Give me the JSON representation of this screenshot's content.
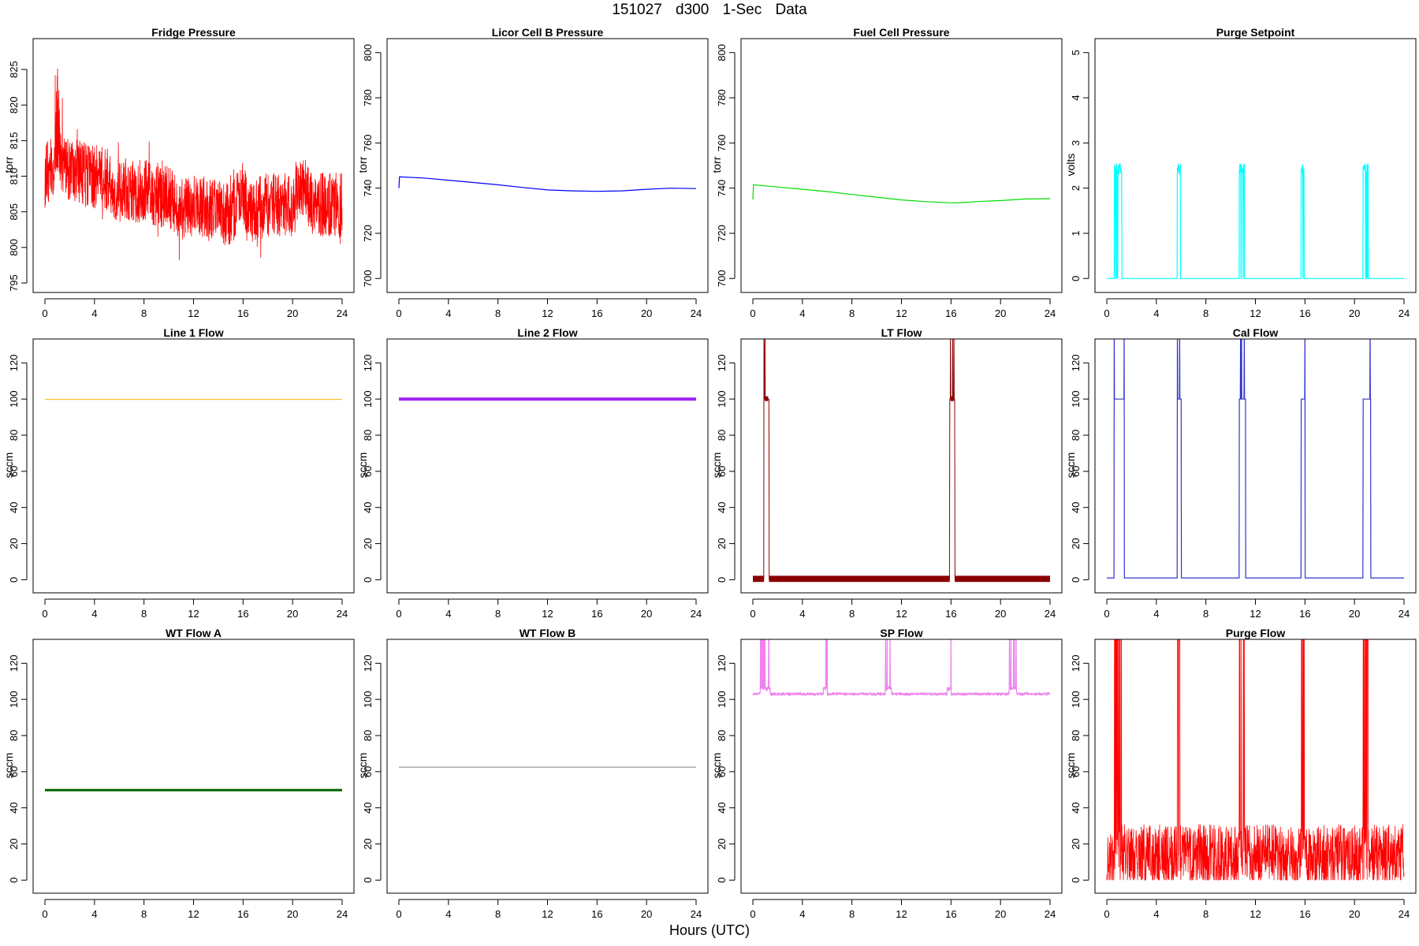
{
  "figure": {
    "title": "151027   d300   1-Sec Data",
    "xlabel": "Hours (UTC)"
  },
  "chart_data": [
    {
      "id": "fridge",
      "type": "line",
      "title": "Fridge Pressure",
      "ylabel": "torr",
      "color": "#ff0000",
      "xlim": [
        0,
        24
      ],
      "ylim": [
        795,
        828
      ],
      "xticks": [
        0,
        4,
        8,
        12,
        16,
        20,
        24
      ],
      "yticks": [
        795,
        800,
        805,
        810,
        815,
        820,
        825
      ],
      "x": [
        0,
        0.5,
        1,
        1.5,
        2,
        3,
        4,
        5,
        5.7,
        6,
        7,
        8,
        9,
        10,
        11,
        11.5,
        12,
        13,
        14,
        15,
        16,
        16.5,
        17,
        18,
        19,
        20,
        21,
        21.5,
        22,
        23,
        24
      ],
      "y": [
        810,
        811,
        813,
        812,
        811,
        810.5,
        810,
        809.5,
        808,
        808.5,
        808,
        808,
        807.5,
        807,
        805,
        806,
        806,
        805.5,
        805,
        804.5,
        808,
        805,
        805.5,
        806,
        806,
        806,
        809,
        806,
        806,
        806,
        806
      ],
      "noise": "high-frequency 1-second fluctuations of roughly ±5 torr about the mean, spikes to ~827 near hour 1"
    },
    {
      "id": "licor",
      "type": "line",
      "title": "Licor Cell B Pressure",
      "ylabel": "torr",
      "color": "#0000ff",
      "xlim": [
        0,
        24
      ],
      "ylim": [
        698,
        802
      ],
      "xticks": [
        0,
        4,
        8,
        12,
        16,
        20,
        24
      ],
      "yticks": [
        700,
        720,
        740,
        760,
        780,
        800
      ],
      "x": [
        0,
        0.05,
        2,
        4,
        6,
        8,
        10,
        12,
        14,
        16,
        18,
        20,
        22,
        24
      ],
      "y": [
        740,
        745,
        744.5,
        743.5,
        742.5,
        741.5,
        740.3,
        739.2,
        738.8,
        738.6,
        738.8,
        739.5,
        740,
        739.8
      ]
    },
    {
      "id": "fuelcell",
      "type": "line",
      "title": "Fuel Cell Pressure",
      "ylabel": "torr",
      "color": "#00dd00",
      "xlim": [
        0,
        24
      ],
      "ylim": [
        698,
        802
      ],
      "xticks": [
        0,
        4,
        8,
        12,
        16,
        20,
        24
      ],
      "yticks": [
        700,
        720,
        740,
        760,
        780,
        800
      ],
      "x": [
        0,
        0.05,
        2,
        4,
        6,
        8,
        10,
        12,
        14,
        16,
        17,
        18,
        20,
        22,
        24
      ],
      "y": [
        735,
        741.5,
        740.5,
        739.5,
        738.5,
        737.2,
        736,
        734.8,
        734,
        733.5,
        733.6,
        734,
        734.5,
        735.2,
        735.3
      ]
    },
    {
      "id": "purgesp",
      "type": "line",
      "title": "Purge Setpoint",
      "ylabel": "volts",
      "color": "#00ffff",
      "xlim": [
        0,
        24
      ],
      "ylim": [
        -0.1,
        5.1
      ],
      "xticks": [
        0,
        4,
        8,
        12,
        16,
        20,
        24
      ],
      "yticks": [
        0,
        1,
        2,
        3,
        4,
        5
      ],
      "pulses": [
        [
          0.6,
          1.2
        ],
        [
          5.7,
          5.95
        ],
        [
          10.7,
          11.1
        ],
        [
          15.7,
          15.95
        ],
        [
          20.7,
          21.1
        ]
      ],
      "baseline": 0,
      "level": 2.5
    },
    {
      "id": "line1",
      "type": "line",
      "title": "Line 1 Flow",
      "ylabel": "sccm",
      "color": "#ffbb33",
      "xlim": [
        0,
        24
      ],
      "ylim": [
        -2,
        128
      ],
      "xticks": [
        0,
        4,
        8,
        12,
        16,
        20,
        24
      ],
      "yticks": [
        0,
        20,
        40,
        60,
        80,
        100,
        120
      ],
      "x": [
        0,
        24
      ],
      "y": [
        99.8,
        99.8
      ]
    },
    {
      "id": "line2",
      "type": "line",
      "title": "Line 2 Flow",
      "ylabel": "sccm",
      "color": "#a020f0",
      "xlim": [
        0,
        24
      ],
      "ylim": [
        -2,
        128
      ],
      "xticks": [
        0,
        4,
        8,
        12,
        16,
        20,
        24
      ],
      "yticks": [
        0,
        20,
        40,
        60,
        80,
        100,
        120
      ],
      "x": [
        0,
        24
      ],
      "y": [
        100,
        100
      ]
    },
    {
      "id": "ltflow",
      "type": "line",
      "title": "LT Flow",
      "ylabel": "sccm",
      "color": "#8b0000",
      "xlim": [
        0,
        24
      ],
      "ylim": [
        -2,
        128
      ],
      "xticks": [
        0,
        4,
        8,
        12,
        16,
        20,
        24
      ],
      "yticks": [
        0,
        20,
        40,
        60,
        80,
        100,
        120
      ],
      "pulses": [
        [
          0.9,
          1.3
        ],
        [
          15.9,
          16.3
        ]
      ],
      "baseline": 0.5,
      "level": 100
    },
    {
      "id": "calflow",
      "type": "line",
      "title": "Cal Flow",
      "ylabel": "sccm",
      "color": "#3333cc",
      "xlim": [
        0,
        24
      ],
      "ylim": [
        -2,
        128
      ],
      "xticks": [
        0,
        4,
        8,
        12,
        16,
        20,
        24
      ],
      "yticks": [
        0,
        20,
        40,
        60,
        80,
        100,
        120
      ],
      "pulses": [
        [
          0.6,
          1.4
        ],
        [
          5.7,
          6.0
        ],
        [
          10.7,
          11.2
        ],
        [
          15.7,
          16.0
        ],
        [
          20.7,
          21.3
        ]
      ],
      "baseline": 1,
      "level": 100
    },
    {
      "id": "wta",
      "type": "line",
      "title": "WT Flow A",
      "ylabel": "sccm",
      "color": "#006400",
      "xlim": [
        0,
        24
      ],
      "ylim": [
        -2,
        128
      ],
      "xticks": [
        0,
        4,
        8,
        12,
        16,
        20,
        24
      ],
      "yticks": [
        0,
        20,
        40,
        60,
        80,
        100,
        120
      ],
      "x": [
        0,
        24
      ],
      "y": [
        49.8,
        49.8
      ]
    },
    {
      "id": "wtb",
      "type": "line",
      "title": "WT Flow B",
      "ylabel": "sccm",
      "color": "#999999",
      "xlim": [
        0,
        24
      ],
      "ylim": [
        -2,
        128
      ],
      "xticks": [
        0,
        4,
        8,
        12,
        16,
        20,
        24
      ],
      "yticks": [
        0,
        20,
        40,
        60,
        80,
        100,
        120
      ],
      "x": [
        0,
        24
      ],
      "y": [
        62.5,
        62.5
      ]
    },
    {
      "id": "spflow",
      "type": "line",
      "title": "SP Flow",
      "ylabel": "sccm",
      "color": "#ee82ee",
      "xlim": [
        0,
        24
      ],
      "ylim": [
        -2,
        128
      ],
      "xticks": [
        0,
        4,
        8,
        12,
        16,
        20,
        24
      ],
      "yticks": [
        0,
        20,
        40,
        60,
        80,
        100,
        120
      ],
      "pulses": [
        [
          0.6,
          1.4
        ],
        [
          5.7,
          6.0
        ],
        [
          10.7,
          11.2
        ],
        [
          15.7,
          16.0
        ],
        [
          20.7,
          21.3
        ]
      ],
      "baseline": 103,
      "level": 106
    },
    {
      "id": "purgeflow",
      "type": "line",
      "title": "Purge Flow",
      "ylabel": "sccm",
      "color": "#ff0000",
      "xlim": [
        0,
        24
      ],
      "ylim": [
        -2,
        128
      ],
      "xticks": [
        0,
        4,
        8,
        12,
        16,
        20,
        24
      ],
      "yticks": [
        0,
        20,
        40,
        60,
        80,
        100,
        120
      ],
      "pulses": [
        [
          0.6,
          1.2
        ],
        [
          5.7,
          5.95
        ],
        [
          10.7,
          11.1
        ],
        [
          15.7,
          15.95
        ],
        [
          20.7,
          21.1
        ]
      ],
      "baseline": 15,
      "level": 130
    }
  ]
}
